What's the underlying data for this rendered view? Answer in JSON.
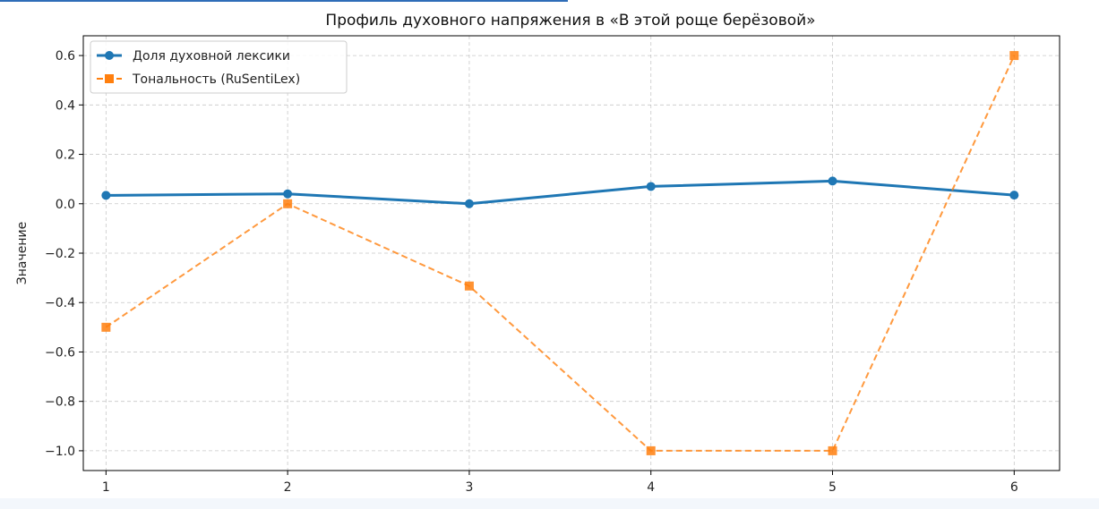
{
  "chart_data": {
    "type": "line",
    "title": "Профиль духовного напряжения в «В этой роще берёзовой»",
    "xlabel": "",
    "ylabel": "Значение",
    "x": [
      1,
      2,
      3,
      4,
      5,
      6
    ],
    "xticks": [
      "1",
      "2",
      "3",
      "4",
      "5",
      "6"
    ],
    "xlim": [
      0.875,
      6.25
    ],
    "ylim": [
      -1.08,
      0.68
    ],
    "yticks": [
      0.6,
      0.4,
      0.2,
      0.0,
      -0.2,
      -0.4,
      -0.6,
      -0.8,
      -1.0
    ],
    "ytick_labels": [
      "0.6",
      "0.4",
      "0.2",
      "0.0",
      "−0.2",
      "−0.4",
      "−0.6",
      "−0.8",
      "−1.0"
    ],
    "grid": true,
    "legend_position": "top-left",
    "series": [
      {
        "name": "Доля духовной лексики",
        "values": [
          0.034,
          0.04,
          0.0,
          0.07,
          0.092,
          0.035
        ],
        "color": "#1f77b4",
        "line_style": "solid",
        "marker": "circle"
      },
      {
        "name": "Тональность (RuSentiLex)",
        "values": [
          -0.5,
          0.0,
          -0.333,
          -1.0,
          -1.0,
          0.6
        ],
        "color": "#ff7f0e",
        "line_style": "dashed",
        "marker": "square"
      }
    ]
  }
}
